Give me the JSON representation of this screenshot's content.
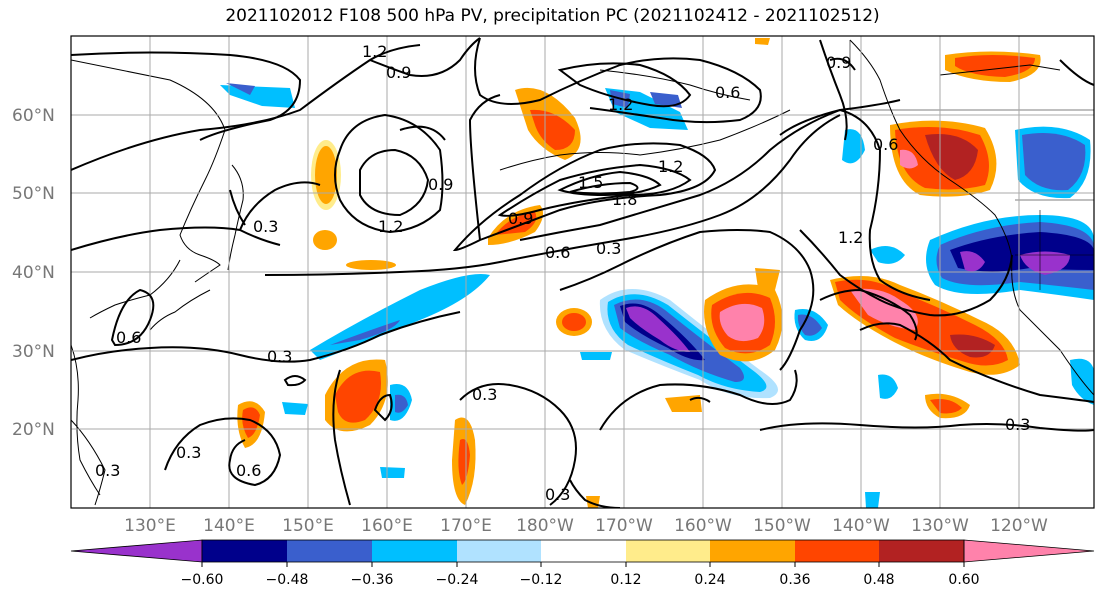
{
  "title": "2021102012 F108 500 hPa PV, precipitation PC (2021102412 - 2021102512)",
  "lat_labels": [
    "60°N",
    "50°N",
    "40°N",
    "30°N",
    "20°N"
  ],
  "lon_labels": [
    "130°E",
    "140°E",
    "150°E",
    "160°E",
    "170°E",
    "180°W",
    "170°W",
    "160°W",
    "150°W",
    "140°W",
    "130°W",
    "120°W"
  ],
  "colorbar": {
    "ticks": [
      "−0.60",
      "−0.48",
      "−0.36",
      "−0.24",
      "−0.12",
      "0.12",
      "0.24",
      "0.36",
      "0.48",
      "0.60"
    ],
    "colors": [
      "#9932CC",
      "#00008B",
      "#3A5FCD",
      "#00BFFF",
      "#B0E2FF",
      "#FFFFFF",
      "#FFEC8B",
      "#FFA500",
      "#FF4500",
      "#B22222",
      "#FF82AB"
    ]
  },
  "contour_labels": [
    "1.2",
    "0.9",
    "0.9",
    "1.2",
    "0.6",
    "0.9",
    "1.2",
    "0.3",
    "1.2",
    "1.5",
    "1.8",
    "0.9",
    "0.6",
    "0.3",
    "0.6",
    "1.2",
    "0.6",
    "0.3",
    "0.3",
    "0.3",
    "0.6",
    "0.3",
    "0.3",
    "0.3"
  ]
}
